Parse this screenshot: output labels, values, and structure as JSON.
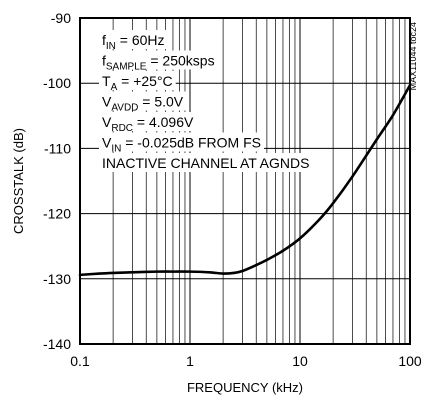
{
  "chart_data": {
    "type": "line",
    "xlabel": "FREQUENCY (kHz)",
    "ylabel": "CROSSTALK (dB)",
    "xscale": "log",
    "xlim": [
      0.1,
      100
    ],
    "ylim": [
      -140,
      -90
    ],
    "xticks": [
      {
        "value": 0.1,
        "label": "0.1"
      },
      {
        "value": 1,
        "label": "1"
      },
      {
        "value": 10,
        "label": "10"
      },
      {
        "value": 100,
        "label": "100"
      }
    ],
    "yticks": [
      {
        "value": -90,
        "label": "-90"
      },
      {
        "value": -100,
        "label": "-100"
      },
      {
        "value": -110,
        "label": "-110"
      },
      {
        "value": -120,
        "label": "-120"
      },
      {
        "value": -130,
        "label": "-130"
      },
      {
        "value": -140,
        "label": "-140"
      }
    ],
    "grid": true,
    "part_code": "MAX11044 toc24",
    "conditions": [
      {
        "main": "f",
        "sub": "IN",
        "rest": " = 60Hz"
      },
      {
        "main": "f",
        "sub": "SAMPLE",
        "rest": " = 250ksps"
      },
      {
        "main": "T",
        "sub": "A",
        "rest": " = +25°C"
      },
      {
        "main": "V",
        "sub": "AVDD",
        "rest": " = 5.0V"
      },
      {
        "main": "V",
        "sub": "RDC",
        "rest": " = 4.096V"
      },
      {
        "main": "V",
        "sub": "IN",
        "rest": " = -0.025dB FROM FS"
      },
      {
        "main": "INACTIVE CHANNEL AT AGNDS",
        "sub": "",
        "rest": ""
      }
    ],
    "series": [
      {
        "x": [
          0.1,
          0.15,
          0.2,
          0.3,
          0.5,
          0.7,
          1,
          1.5,
          2,
          2.5,
          3,
          4,
          5,
          7,
          10,
          15,
          20,
          30,
          50,
          70,
          100
        ],
        "y": [
          -129.4,
          -129.2,
          -129.1,
          -129.0,
          -128.9,
          -128.9,
          -128.9,
          -129.0,
          -129.2,
          -129.1,
          -128.8,
          -127.9,
          -127.1,
          -125.7,
          -123.8,
          -120.9,
          -118.4,
          -114.3,
          -108.6,
          -104.9,
          -100.3
        ]
      }
    ]
  }
}
